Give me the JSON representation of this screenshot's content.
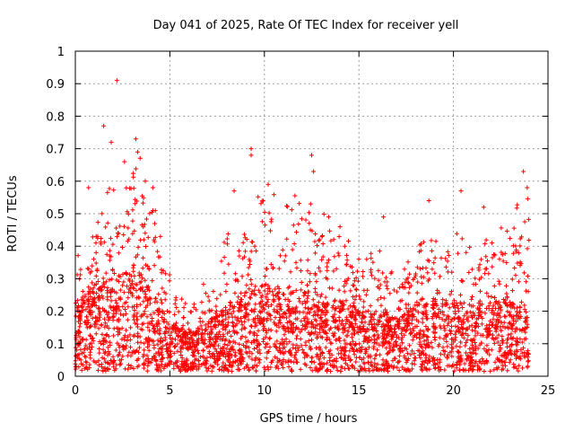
{
  "chart_data": {
    "type": "scatter",
    "title": "Day 041 of 2025, Rate Of TEC Index for receiver yell",
    "xlabel": "GPS time / hours",
    "ylabel": "ROTI / TECUs",
    "xlim": [
      0,
      25
    ],
    "ylim": [
      0,
      1
    ],
    "x_ticks": [
      0,
      5,
      10,
      15,
      20,
      25
    ],
    "x_tick_labels": [
      "0",
      "5",
      "10",
      "15",
      "20",
      "25"
    ],
    "y_ticks": [
      0,
      0.1,
      0.2,
      0.3,
      0.4,
      0.5,
      0.6,
      0.7,
      0.8,
      0.9,
      1
    ],
    "y_tick_labels": [
      "0",
      "0.1",
      "0.2",
      "0.3",
      "0.4",
      "0.5",
      "0.6",
      "0.7",
      "0.8",
      "0.9",
      "1"
    ],
    "grid": true,
    "marker": "+",
    "color": "#ff0000",
    "data_x_range": [
      0,
      24
    ],
    "activity_profile": [
      {
        "t": 0.0,
        "base": 0.12,
        "max": 0.34
      },
      {
        "t": 1.0,
        "base": 0.16,
        "max": 0.45
      },
      {
        "t": 2.0,
        "base": 0.18,
        "max": 0.58
      },
      {
        "t": 3.0,
        "base": 0.2,
        "max": 0.72
      },
      {
        "t": 4.0,
        "base": 0.15,
        "max": 0.55
      },
      {
        "t": 5.0,
        "base": 0.09,
        "max": 0.3
      },
      {
        "t": 6.0,
        "base": 0.07,
        "max": 0.22
      },
      {
        "t": 7.0,
        "base": 0.09,
        "max": 0.3
      },
      {
        "t": 8.0,
        "base": 0.12,
        "max": 0.44
      },
      {
        "t": 9.0,
        "base": 0.15,
        "max": 0.48
      },
      {
        "t": 10.0,
        "base": 0.16,
        "max": 0.57
      },
      {
        "t": 11.0,
        "base": 0.14,
        "max": 0.5
      },
      {
        "t": 12.0,
        "base": 0.15,
        "max": 0.55
      },
      {
        "t": 13.0,
        "base": 0.14,
        "max": 0.5
      },
      {
        "t": 14.0,
        "base": 0.13,
        "max": 0.44
      },
      {
        "t": 15.0,
        "base": 0.11,
        "max": 0.36
      },
      {
        "t": 16.0,
        "base": 0.11,
        "max": 0.38
      },
      {
        "t": 17.0,
        "base": 0.1,
        "max": 0.3
      },
      {
        "t": 18.0,
        "base": 0.12,
        "max": 0.38
      },
      {
        "t": 19.0,
        "base": 0.13,
        "max": 0.42
      },
      {
        "t": 20.0,
        "base": 0.13,
        "max": 0.44
      },
      {
        "t": 21.0,
        "base": 0.12,
        "max": 0.4
      },
      {
        "t": 22.0,
        "base": 0.13,
        "max": 0.42
      },
      {
        "t": 23.0,
        "base": 0.14,
        "max": 0.48
      },
      {
        "t": 24.0,
        "base": 0.13,
        "max": 0.55
      }
    ],
    "outliers": [
      {
        "x": 2.2,
        "y": 0.91
      },
      {
        "x": 1.5,
        "y": 0.77
      },
      {
        "x": 1.9,
        "y": 0.72
      },
      {
        "x": 3.2,
        "y": 0.73
      },
      {
        "x": 3.3,
        "y": 0.69
      },
      {
        "x": 2.6,
        "y": 0.66
      },
      {
        "x": 3.7,
        "y": 0.6
      },
      {
        "x": 9.3,
        "y": 0.7
      },
      {
        "x": 9.3,
        "y": 0.68
      },
      {
        "x": 12.5,
        "y": 0.68
      },
      {
        "x": 12.6,
        "y": 0.63
      },
      {
        "x": 8.4,
        "y": 0.57
      },
      {
        "x": 10.2,
        "y": 0.59
      },
      {
        "x": 13.4,
        "y": 0.49
      },
      {
        "x": 14.0,
        "y": 0.46
      },
      {
        "x": 16.3,
        "y": 0.49
      },
      {
        "x": 18.7,
        "y": 0.54
      },
      {
        "x": 20.4,
        "y": 0.57
      },
      {
        "x": 21.6,
        "y": 0.52
      },
      {
        "x": 23.7,
        "y": 0.63
      },
      {
        "x": 23.9,
        "y": 0.58
      },
      {
        "x": 0.7,
        "y": 0.58
      },
      {
        "x": 4.1,
        "y": 0.58
      },
      {
        "x": 4.5,
        "y": 0.43
      }
    ]
  }
}
